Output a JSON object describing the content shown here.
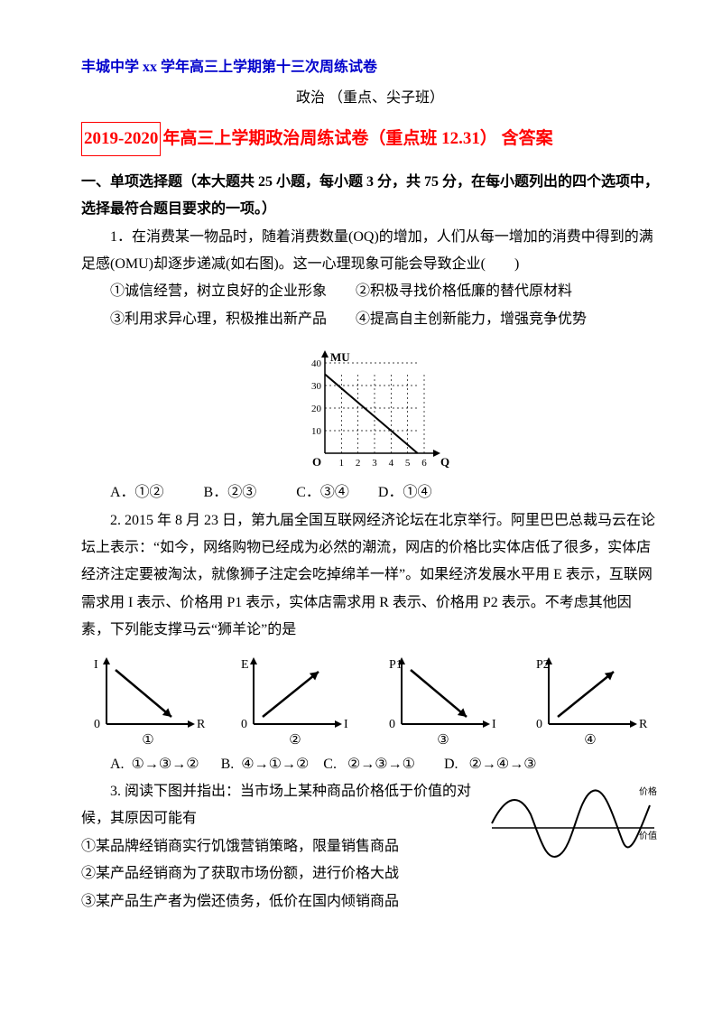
{
  "header": {
    "school": "丰城中学 xx 学年高三上学期第十三次周练试卷",
    "subject": "政治 （重点、尖子班）"
  },
  "title": {
    "boxed": "2019-2020",
    "rest": "年高三上学期政治周练试卷（重点班 12.31） 含答案"
  },
  "section1": {
    "heading": "一、单项选择题（本大题共 25 小题，每小题 3 分，共 75 分，在每小题列出的四个选项中，选择最符合题目要求的一项。）"
  },
  "q1": {
    "stem_a": "1．在消费某一物品时，随着消费数量(OQ)的增加，人们从每一增加的消费中得到的满足感(OMU)却逐步递减(如右图)。这一心理现象可能会导致企业(　　)",
    "opt1": "①诚信经营，树立良好的企业形象　　②积极寻找价格低廉的替代原材料",
    "opt2": "③利用求异心理，积极推出新产品　　④提高自主创新能力，增强竞争优势",
    "choices": "A．①②           B．②③           C．③④        D．①④",
    "mu_chart": {
      "y_label": "MU",
      "x_label": "Q",
      "y_ticks": [
        "10",
        "20",
        "30",
        "40"
      ],
      "x_ticks": [
        "1",
        "2",
        "3",
        "4",
        "5",
        "6"
      ],
      "line_start": [
        0,
        35
      ],
      "line_end": [
        5.6,
        0
      ],
      "grid_color": "#000000",
      "bg": "#ffffff"
    }
  },
  "q2": {
    "stem": "2. 2015 年 8 月 23 日，第九届全国互联网经济论坛在北京举行。阿里巴巴总裁马云在论坛上表示：“如今，网络购物已经成为必然的潮流，网店的价格比实体店低了很多，实体店经济注定要被淘汰，就像狮子注定会吃掉绵羊一样”。如果经济发展水平用 E 表示，互联网需求用 I 表示、价格用 P1 表示，实体店需求用 R 表示、价格用 P2 表示。不考虑其他因素，下列能支撑马云“狮羊论”的是",
    "charts": [
      {
        "y": "I",
        "x": "R",
        "num": "①",
        "dir": "down"
      },
      {
        "y": "E",
        "x": "I",
        "num": "②",
        "dir": "up"
      },
      {
        "y": "P1",
        "x": "I",
        "num": "③",
        "dir": "down"
      },
      {
        "y": "P2",
        "x": "R",
        "num": "④",
        "dir": "up"
      }
    ],
    "choices": "A.  ①→③→②      B.  ④→①→②    C.   ②→③→①        D.   ②→④→③"
  },
  "q3": {
    "stem": "3. 阅读下图并指出：当市场上某种商品价格低于价值的对候，其原因可能有",
    "l1": "①某品牌经销商实行饥饿营销策略，限量销售商品",
    "l2": "②某产品经销商为了获取市场份额，进行价格大战",
    "l3": "③某产品生产者为偿还债务，低价在国内倾销商品",
    "img_labels": {
      "top": "价格",
      "mid": "价值"
    }
  }
}
